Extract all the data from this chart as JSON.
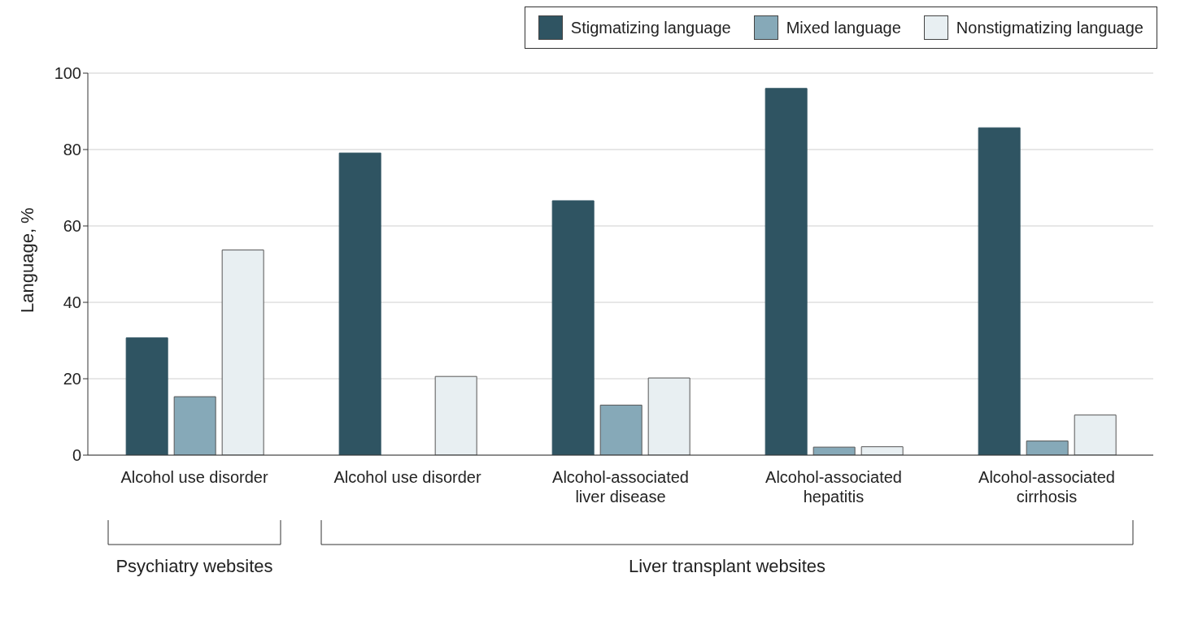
{
  "chart_data": {
    "type": "bar",
    "categories": [
      "Alcohol use disorder",
      "Alcohol use disorder",
      "Alcohol-associated liver disease",
      "Alcohol-associated hepatitis",
      "Alcohol-associated cirrhosis"
    ],
    "ylabel": "Language, %",
    "series": [
      {
        "name": "Stigmatizing language",
        "color": "#2f5462",
        "values": [
          30.7,
          79.1,
          66.6,
          96.0,
          85.7
        ]
      },
      {
        "name": "Mixed language",
        "color": "#86a9b8",
        "values": [
          15.3,
          0,
          13.1,
          2.1,
          3.7
        ]
      },
      {
        "name": "Nonstigmatizing language",
        "color": "#e8eff2",
        "values": [
          53.7,
          20.6,
          20.2,
          2.2,
          10.5
        ]
      }
    ],
    "ylim": [
      0,
      100
    ],
    "yticks": [
      0,
      20,
      40,
      60,
      80,
      100
    ],
    "grid": "y",
    "legend": "top right",
    "annotations": [
      "Psychiatry websites",
      "Liver transplant websites"
    ]
  }
}
